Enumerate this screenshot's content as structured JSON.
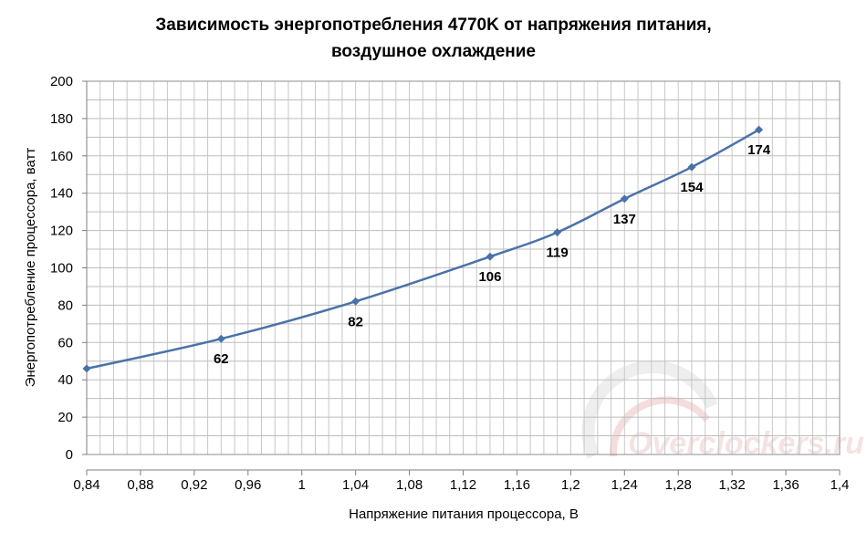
{
  "chart_data": {
    "type": "line",
    "title_line1": "Зависимость энергопотребления 4770K от напряжения питания,",
    "title_line2": "воздушное охлаждение",
    "xlabel": "Напряжение питания процессора, В",
    "ylabel": "Энергопотребление процессора, ватт",
    "xlim": [
      0.84,
      1.4
    ],
    "ylim": [
      0,
      200
    ],
    "x_ticks": [
      "0,84",
      "0,88",
      "0,92",
      "0,96",
      "1",
      "1,04",
      "1,08",
      "1,12",
      "1,16",
      "1,2",
      "1,24",
      "1,28",
      "1,32",
      "1,36",
      "1,4"
    ],
    "y_ticks": [
      "0",
      "20",
      "40",
      "60",
      "80",
      "100",
      "120",
      "140",
      "160",
      "180",
      "200"
    ],
    "grid": true,
    "series": [
      {
        "x": [
          0.84,
          0.94,
          1.04,
          1.14,
          1.19,
          1.24,
          1.29,
          1.34
        ],
        "y": [
          46,
          62,
          82,
          106,
          119,
          137,
          154,
          174
        ],
        "data_labels": [
          "",
          "62",
          "82",
          "106",
          "119",
          "137",
          "154",
          "174"
        ],
        "color": "#4a72a8"
      }
    ],
    "watermark": "Overclockers.ru"
  }
}
